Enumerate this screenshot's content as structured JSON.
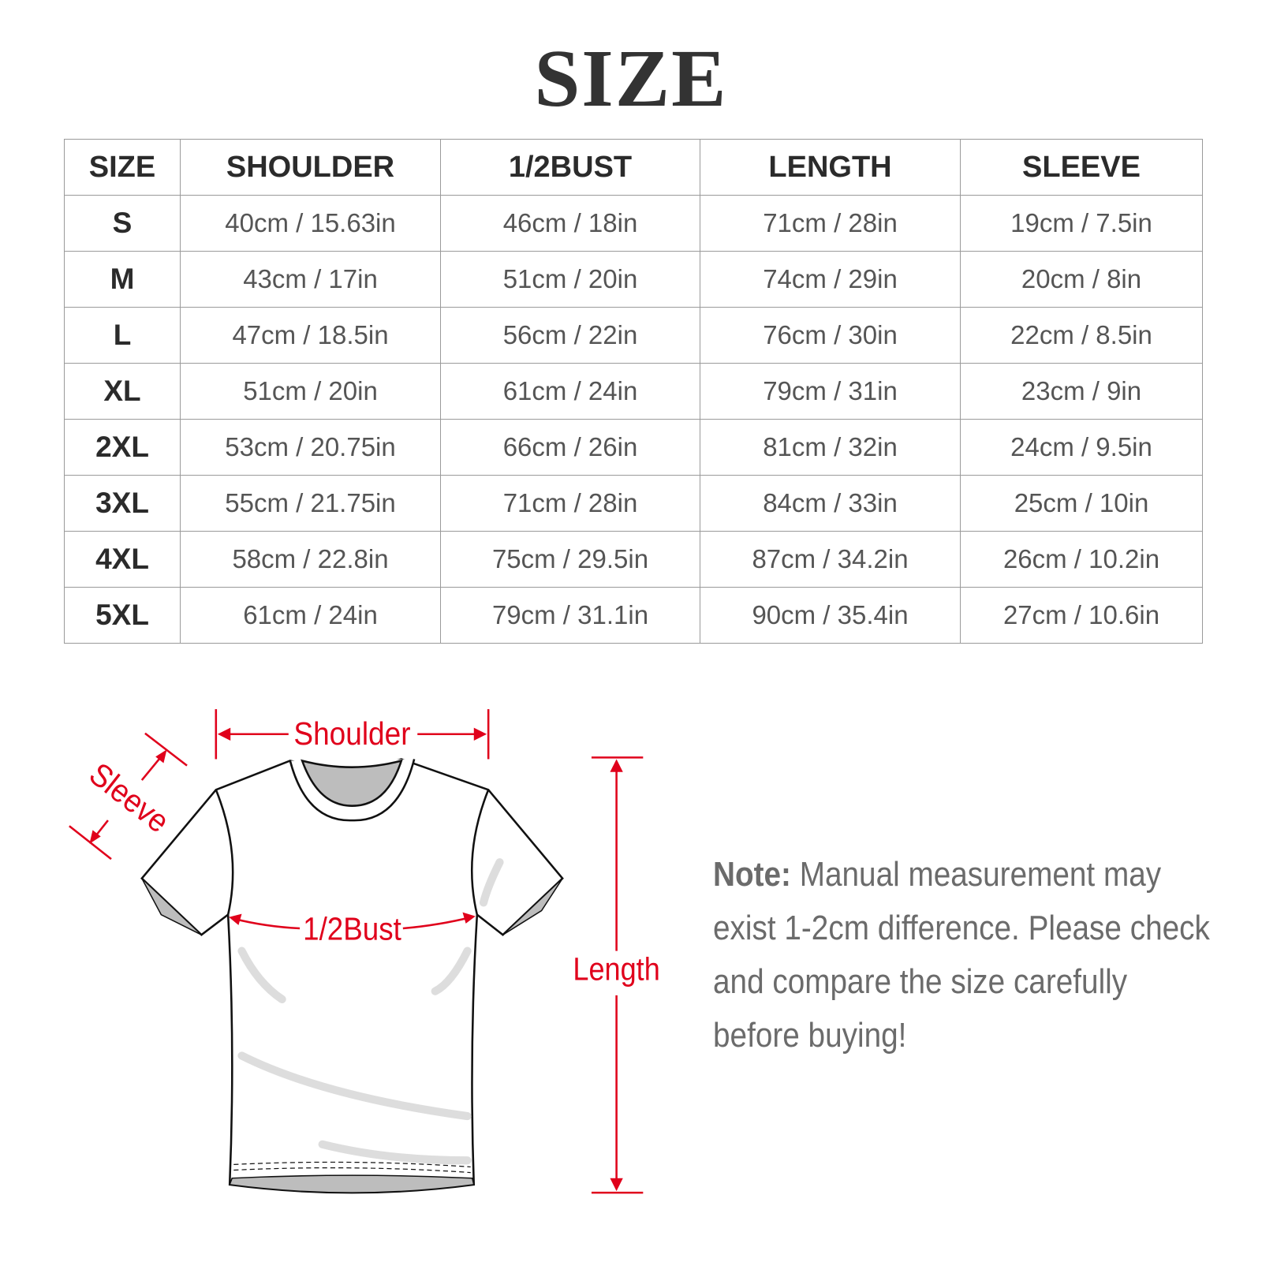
{
  "title": "SIZE",
  "table": {
    "headers": [
      "SIZE",
      "SHOULDER",
      "1/2BUST",
      "LENGTH",
      "SLEEVE"
    ],
    "rows": [
      [
        "S",
        "40cm / 15.63in",
        "46cm / 18in",
        "71cm / 28in",
        "19cm / 7.5in"
      ],
      [
        "M",
        "43cm / 17in",
        "51cm / 20in",
        "74cm / 29in",
        "20cm / 8in"
      ],
      [
        "L",
        "47cm / 18.5in",
        "56cm / 22in",
        "76cm / 30in",
        "22cm / 8.5in"
      ],
      [
        "XL",
        "51cm / 20in",
        "61cm / 24in",
        "79cm / 31in",
        "23cm / 9in"
      ],
      [
        "2XL",
        "53cm / 20.75in",
        "66cm / 26in",
        "81cm / 32in",
        "24cm / 9.5in"
      ],
      [
        "3XL",
        "55cm / 21.75in",
        "71cm / 28in",
        "84cm / 33in",
        "25cm / 10in"
      ],
      [
        "4XL",
        "58cm / 22.8in",
        "75cm / 29.5in",
        "87cm / 34.2in",
        "26cm / 10.2in"
      ],
      [
        "5XL",
        "61cm / 24in",
        "79cm / 31.1in",
        "90cm / 35.4in",
        "27cm / 10.6in"
      ]
    ]
  },
  "diagram": {
    "shoulder": "Shoulder",
    "sleeve": "Sleeve",
    "bust": "1/2Bust",
    "length": "Length",
    "accent_color": "#e0001b"
  },
  "note": {
    "label": "Note:",
    "text": "Manual measurement may exist 1-2cm difference. Please check and compare the size carefully before buying!"
  }
}
